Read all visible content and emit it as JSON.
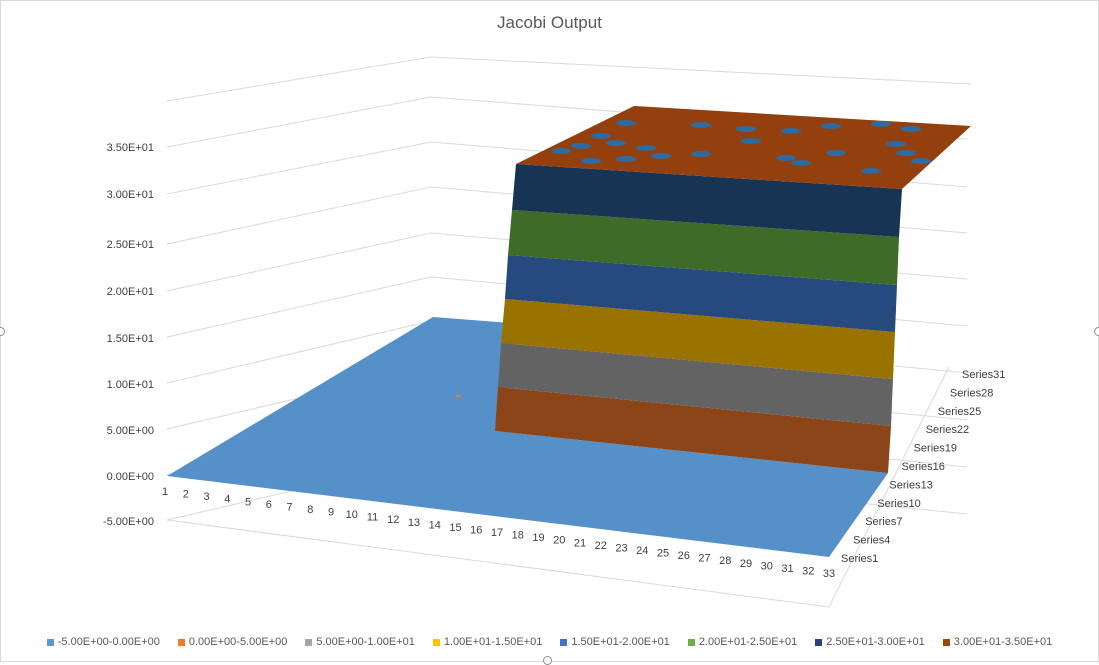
{
  "chart_data": {
    "type": "surface",
    "title": "Jacobi Output",
    "xlabel": "",
    "ylabel": "",
    "x_categories": [
      "1",
      "2",
      "3",
      "4",
      "5",
      "6",
      "7",
      "8",
      "9",
      "10",
      "11",
      "12",
      "13",
      "14",
      "15",
      "16",
      "17",
      "18",
      "19",
      "20",
      "21",
      "22",
      "23",
      "24",
      "25",
      "26",
      "27",
      "28",
      "29",
      "30",
      "31",
      "32",
      "33"
    ],
    "y_series": [
      "Series1",
      "Series4",
      "Series7",
      "Series10",
      "Series13",
      "Series16",
      "Series19",
      "Series22",
      "Series25",
      "Series28",
      "Series31"
    ],
    "z_ticks": [
      "-5.00E+00",
      "0.00E+00",
      "5.00E+00",
      "1.00E+01",
      "1.50E+01",
      "2.00E+01",
      "2.50E+01",
      "3.00E+01",
      "3.50E+01"
    ],
    "zlim": [
      -5,
      35
    ],
    "surface_description_values": {
      "low_plateau": 0,
      "high_plateau": 33,
      "step_at_x": 18,
      "high_region_series_from": 14
    },
    "legend": [
      {
        "label": "-5.00E+00-0.00E+00",
        "color": "#5b9bd5"
      },
      {
        "label": "0.00E+00-5.00E+00",
        "color": "#ed7d31"
      },
      {
        "label": "5.00E+00-1.00E+01",
        "color": "#a5a5a5"
      },
      {
        "label": "1.00E+01-1.50E+01",
        "color": "#ffc000"
      },
      {
        "label": "1.50E+01-2.00E+01",
        "color": "#4472c4"
      },
      {
        "label": "2.00E+01-2.50E+01",
        "color": "#70ad47"
      },
      {
        "label": "2.50E+01-3.00E+01",
        "color": "#264478"
      },
      {
        "label": "3.00E+01-3.50E+01",
        "color": "#9e480e"
      }
    ]
  },
  "colors": {
    "floor": "#5590c8",
    "band_0_5": "#8b4518",
    "band_5_10": "#636363",
    "band_10_15": "#9a7200",
    "band_15_20": "#264a7d",
    "band_20_25": "#3e6b27",
    "band_25_30": "#173455",
    "top": "#93400e",
    "top_specks": "#2e6ba3"
  }
}
